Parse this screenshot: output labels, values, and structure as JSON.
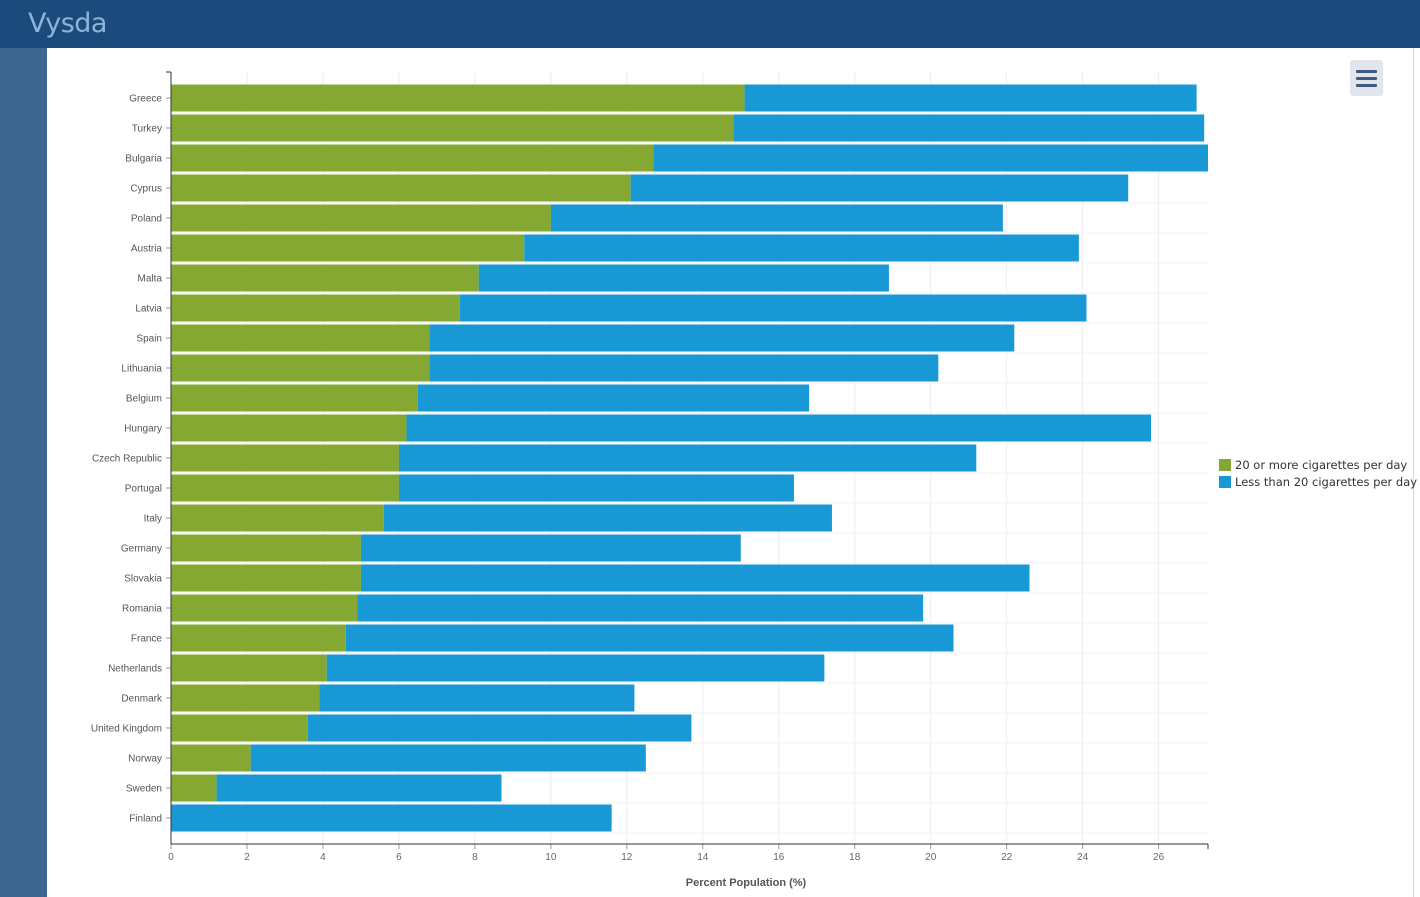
{
  "app": {
    "logo": "Vysda"
  },
  "toolbar": {
    "menu_icon": "hamburger-menu-icon"
  },
  "colors": {
    "series_heavy": "#84a832",
    "series_light": "#1898d5",
    "grid": "#ececec",
    "axis": "#333333"
  },
  "chart_data": {
    "type": "bar",
    "orientation": "horizontal",
    "stacked": true,
    "xlabel": "Percent Population (%)",
    "ylabel": "",
    "xlim": [
      0,
      27.3
    ],
    "x_ticks": [
      0,
      2,
      4,
      6,
      8,
      10,
      12,
      14,
      16,
      18,
      20,
      22,
      24,
      26
    ],
    "grid": true,
    "legend_position": "right",
    "categories": [
      "Greece",
      "Turkey",
      "Bulgaria",
      "Cyprus",
      "Poland",
      "Austria",
      "Malta",
      "Latvia",
      "Spain",
      "Lithuania",
      "Belgium",
      "Hungary",
      "Czech Republic",
      "Portugal",
      "Italy",
      "Germany",
      "Slovakia",
      "Romania",
      "France",
      "Netherlands",
      "Denmark",
      "United Kingdom",
      "Norway",
      "Sweden",
      "Finland"
    ],
    "series": [
      {
        "name": "20 or more cigarettes per day",
        "color": "#84a832",
        "values": [
          15.1,
          14.8,
          12.7,
          12.1,
          10.0,
          9.3,
          8.1,
          7.6,
          6.8,
          6.8,
          6.5,
          6.2,
          6.0,
          6.0,
          5.6,
          5.0,
          5.0,
          4.9,
          4.6,
          4.1,
          3.9,
          3.6,
          2.1,
          1.2,
          0.0
        ]
      },
      {
        "name": "Less than 20 cigarettes per day",
        "color": "#1898d5",
        "values": [
          11.9,
          12.4,
          14.6,
          13.1,
          11.9,
          14.6,
          10.8,
          16.5,
          15.4,
          13.4,
          10.3,
          19.6,
          15.2,
          10.4,
          11.8,
          10.0,
          17.6,
          14.9,
          16.0,
          13.1,
          8.3,
          10.1,
          10.4,
          7.5,
          11.6
        ]
      }
    ]
  }
}
